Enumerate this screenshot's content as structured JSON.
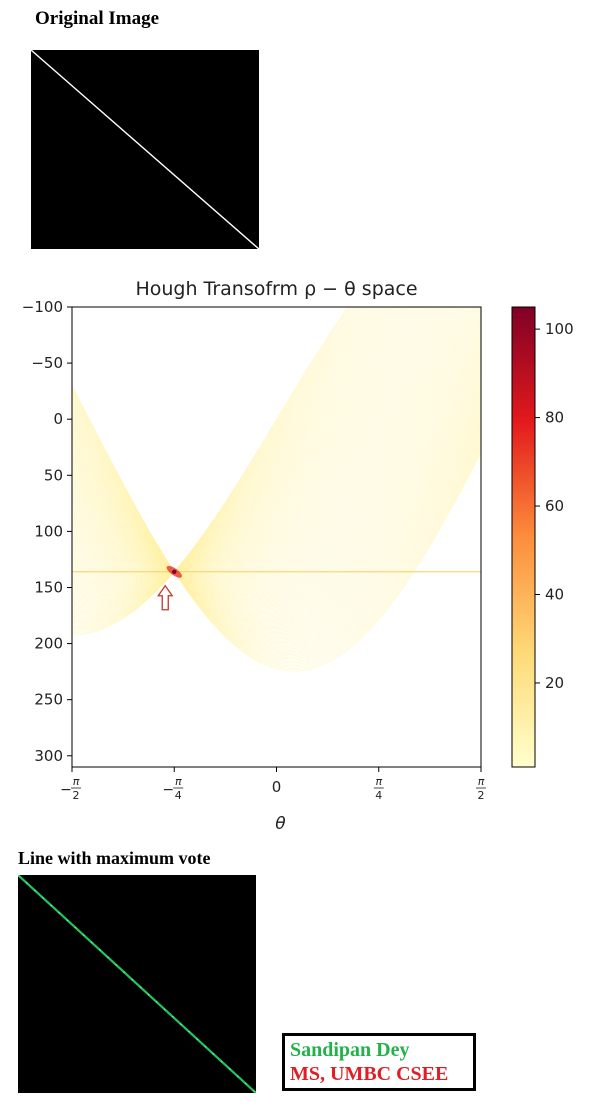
{
  "headings": {
    "original": "Original Image",
    "max_vote": "Line with maximum vote"
  },
  "colors": {
    "panel_background": "#000000",
    "original_line": "#ffffff",
    "detected_line": "#22c55e",
    "marker_arrow": "#c0392b",
    "credit_name": "#22b24c",
    "credit_affiliation": "#e01f25"
  },
  "credit": {
    "name": "Sandipan Dey",
    "affiliation": "MS, UMBC CSEE"
  },
  "chart_data": {
    "type": "heatmap",
    "title": "Hough Transofrm ρ − θ space",
    "xlabel": "θ",
    "ylabel": "",
    "x_range": [
      -1.5708,
      1.5708
    ],
    "y_range": [
      -100,
      310
    ],
    "y_inverted": true,
    "x_ticks": [
      {
        "value": -1.5708,
        "num": "π",
        "den": "2",
        "sign": "−"
      },
      {
        "value": -0.7854,
        "num": "π",
        "den": "4",
        "sign": "−"
      },
      {
        "value": 0,
        "label": "0"
      },
      {
        "value": 0.7854,
        "num": "π",
        "den": "4",
        "sign": ""
      },
      {
        "value": 1.5708,
        "num": "π",
        "den": "2",
        "sign": ""
      }
    ],
    "y_ticks": [
      -100,
      -50,
      0,
      50,
      100,
      150,
      200,
      250,
      300
    ],
    "y_tick_labels": [
      "−100",
      "−50",
      "0",
      "50",
      "100",
      "150",
      "200",
      "250",
      "300"
    ],
    "colorbar": {
      "colormap": "YlOrRd",
      "range": [
        1,
        105
      ],
      "ticks": [
        20,
        40,
        60,
        80,
        100
      ],
      "tick_labels": [
        "20",
        "40",
        "60",
        "80",
        "100"
      ],
      "stops": [
        "#ffffcc",
        "#fed976",
        "#fd8d3c",
        "#e31a1c",
        "#800026"
      ]
    },
    "sinusoids": {
      "count": 200,
      "peak_theta": -0.7854,
      "peak_rho": 136,
      "edge_rho": 136,
      "max_votes": 105
    },
    "annotation": "up-arrow below peak"
  }
}
